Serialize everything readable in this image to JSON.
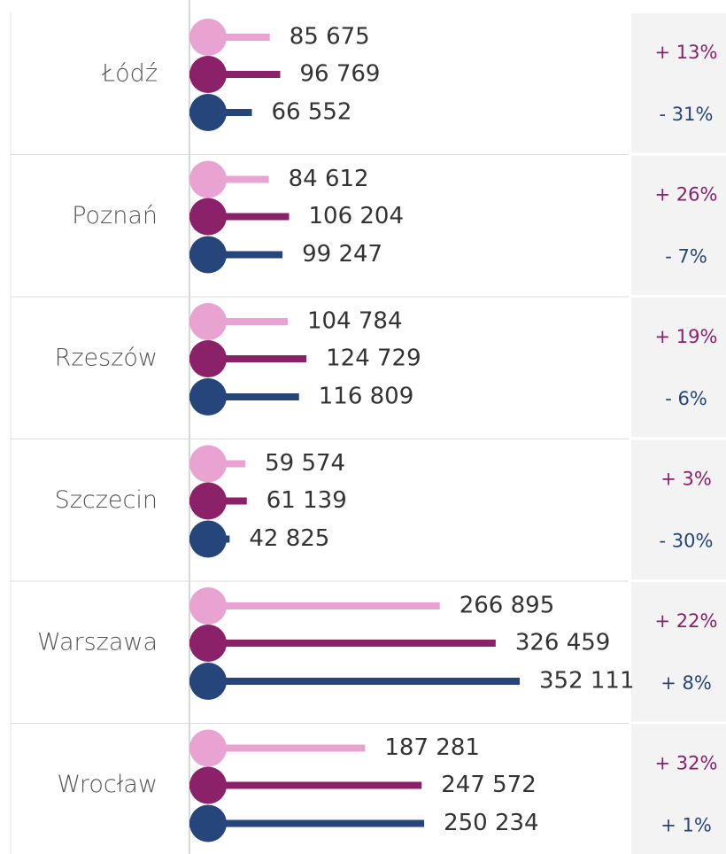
{
  "chart_data": {
    "type": "bar",
    "categories": [
      "Łódź",
      "Poznań",
      "Rzeszów",
      "Szczecin",
      "Warszawa",
      "Wrocław"
    ],
    "series": [
      {
        "color": "#e8a3d3",
        "values": [
          85675,
          84612,
          104784,
          59574,
          266895,
          187281
        ],
        "value_labels": [
          "85 675",
          "84 612",
          "104 784",
          "59 574",
          "266 895",
          "187 281"
        ]
      },
      {
        "color": "#8b2169",
        "values": [
          96769,
          106204,
          124729,
          61139,
          326459,
          247572
        ],
        "value_labels": [
          "96 769",
          "106 204",
          "124 729",
          "61 139",
          "326 459",
          "247 572"
        ]
      },
      {
        "color": "#26457a",
        "values": [
          66552,
          99247,
          116809,
          42825,
          352111,
          250234
        ],
        "value_labels": [
          "66 552",
          "99 247",
          "116 809",
          "42 825",
          "352 111",
          "250 234"
        ]
      }
    ],
    "changes": [
      {
        "color": "#8b2169",
        "labels": [
          "+ 13%",
          "+ 26%",
          "+ 19%",
          "+ 3%",
          "+ 22%",
          "+ 32%"
        ]
      },
      {
        "color": "#26457a",
        "labels": [
          "- 31%",
          "- 7%",
          "- 6%",
          "- 30%",
          "+ 8%",
          "+ 1%"
        ]
      }
    ]
  }
}
